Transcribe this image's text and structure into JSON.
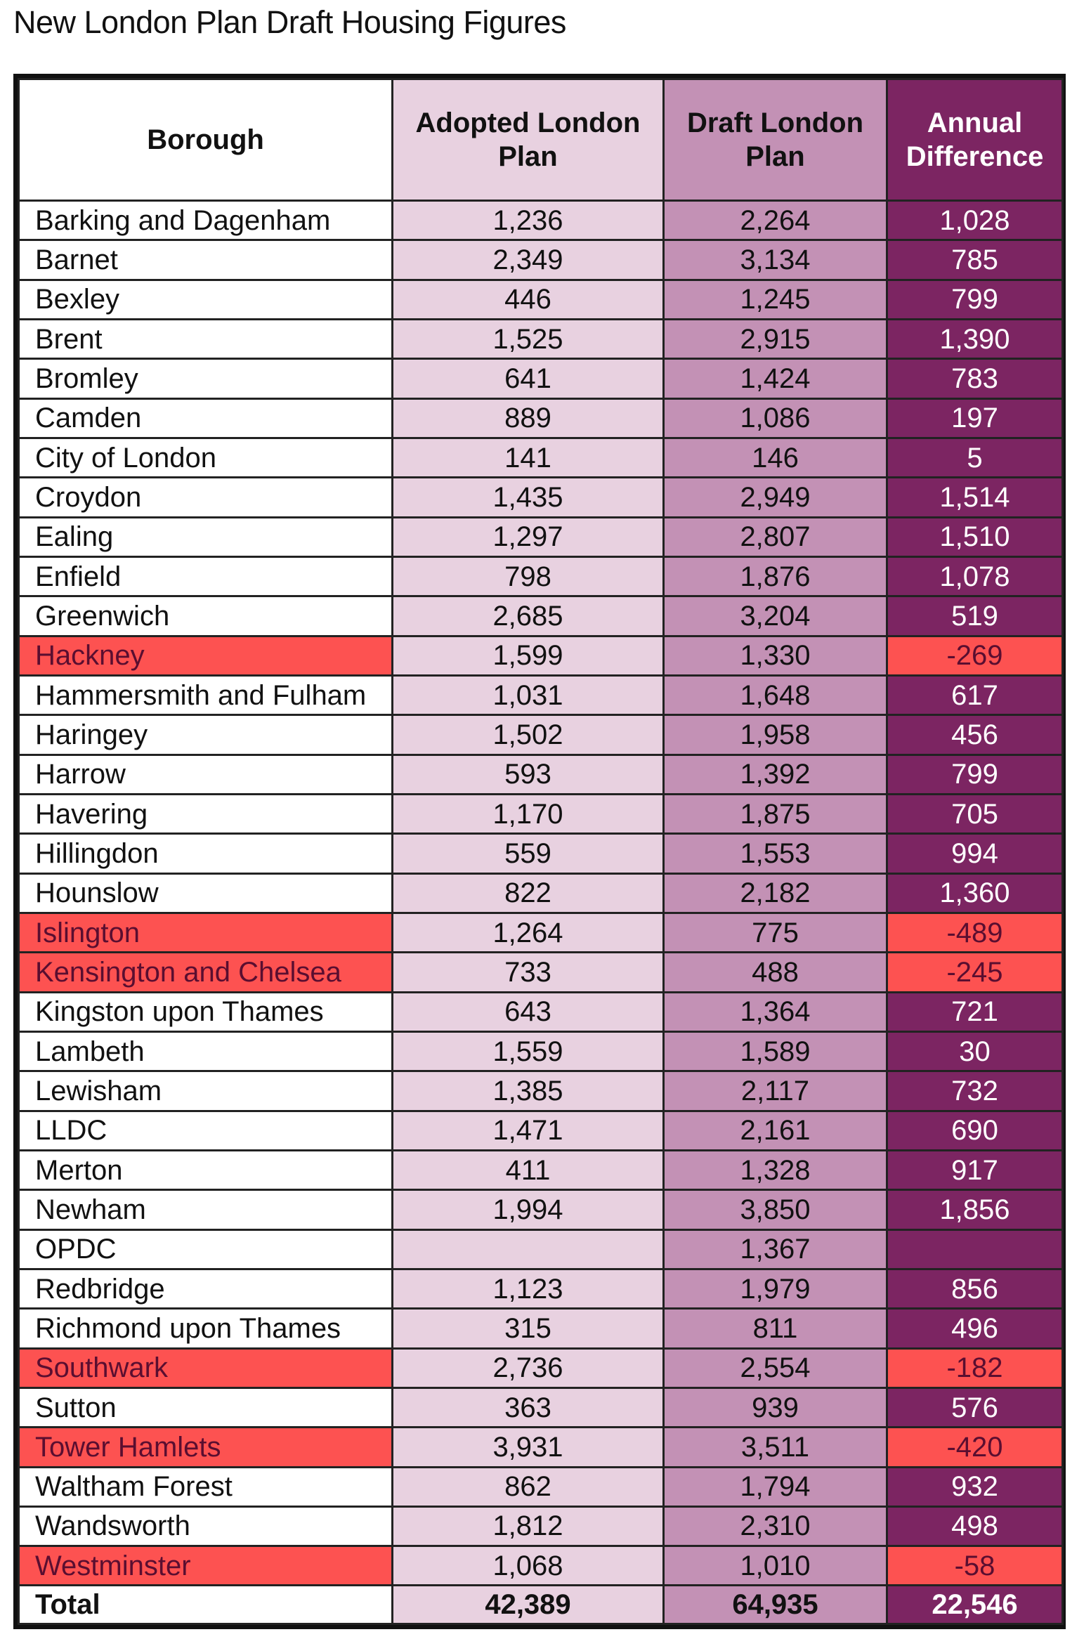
{
  "title": "New London Plan Draft Housing Figures",
  "colors": {
    "adopted_column": "#e8d1e0",
    "draft_column": "#c391b5",
    "difference_column": "#7c2562",
    "negative_highlight": "#fd5251"
  },
  "chart_data": {
    "type": "table",
    "title": "New London Plan Draft Housing Figures",
    "columns": [
      "Borough",
      "Adopted London Plan",
      "Draft London Plan",
      "Annual Difference"
    ],
    "rows": [
      {
        "borough": "Barking and Dagenham",
        "adopted": "1,236",
        "draft": "2,264",
        "difference": "1,028",
        "negative": false
      },
      {
        "borough": "Barnet",
        "adopted": "2,349",
        "draft": "3,134",
        "difference": "785",
        "negative": false
      },
      {
        "borough": "Bexley",
        "adopted": "446",
        "draft": "1,245",
        "difference": "799",
        "negative": false
      },
      {
        "borough": "Brent",
        "adopted": "1,525",
        "draft": "2,915",
        "difference": "1,390",
        "negative": false
      },
      {
        "borough": "Bromley",
        "adopted": "641",
        "draft": "1,424",
        "difference": "783",
        "negative": false
      },
      {
        "borough": "Camden",
        "adopted": "889",
        "draft": "1,086",
        "difference": "197",
        "negative": false
      },
      {
        "borough": "City of London",
        "adopted": "141",
        "draft": "146",
        "difference": "5",
        "negative": false
      },
      {
        "borough": "Croydon",
        "adopted": "1,435",
        "draft": "2,949",
        "difference": "1,514",
        "negative": false
      },
      {
        "borough": "Ealing",
        "adopted": "1,297",
        "draft": "2,807",
        "difference": "1,510",
        "negative": false
      },
      {
        "borough": "Enfield",
        "adopted": "798",
        "draft": "1,876",
        "difference": "1,078",
        "negative": false
      },
      {
        "borough": "Greenwich",
        "adopted": "2,685",
        "draft": "3,204",
        "difference": "519",
        "negative": false
      },
      {
        "borough": "Hackney",
        "adopted": "1,599",
        "draft": "1,330",
        "difference": "-269",
        "negative": true
      },
      {
        "borough": "Hammersmith and Fulham",
        "adopted": "1,031",
        "draft": "1,648",
        "difference": "617",
        "negative": false
      },
      {
        "borough": "Haringey",
        "adopted": "1,502",
        "draft": "1,958",
        "difference": "456",
        "negative": false
      },
      {
        "borough": "Harrow",
        "adopted": "593",
        "draft": "1,392",
        "difference": "799",
        "negative": false
      },
      {
        "borough": "Havering",
        "adopted": "1,170",
        "draft": "1,875",
        "difference": "705",
        "negative": false
      },
      {
        "borough": "Hillingdon",
        "adopted": "559",
        "draft": "1,553",
        "difference": "994",
        "negative": false
      },
      {
        "borough": "Hounslow",
        "adopted": "822",
        "draft": "2,182",
        "difference": "1,360",
        "negative": false
      },
      {
        "borough": "Islington",
        "adopted": "1,264",
        "draft": "775",
        "difference": "-489",
        "negative": true
      },
      {
        "borough": "Kensington and Chelsea",
        "adopted": "733",
        "draft": "488",
        "difference": "-245",
        "negative": true
      },
      {
        "borough": "Kingston upon Thames",
        "adopted": "643",
        "draft": "1,364",
        "difference": "721",
        "negative": false
      },
      {
        "borough": "Lambeth",
        "adopted": "1,559",
        "draft": "1,589",
        "difference": "30",
        "negative": false
      },
      {
        "borough": "Lewisham",
        "adopted": "1,385",
        "draft": "2,117",
        "difference": "732",
        "negative": false
      },
      {
        "borough": "LLDC",
        "adopted": "1,471",
        "draft": "2,161",
        "difference": "690",
        "negative": false
      },
      {
        "borough": "Merton",
        "adopted": "411",
        "draft": "1,328",
        "difference": "917",
        "negative": false
      },
      {
        "borough": "Newham",
        "adopted": "1,994",
        "draft": "3,850",
        "difference": "1,856",
        "negative": false
      },
      {
        "borough": "OPDC",
        "adopted": "",
        "draft": "1,367",
        "difference": "",
        "negative": false
      },
      {
        "borough": "Redbridge",
        "adopted": "1,123",
        "draft": "1,979",
        "difference": "856",
        "negative": false
      },
      {
        "borough": "Richmond upon Thames",
        "adopted": "315",
        "draft": "811",
        "difference": "496",
        "negative": false
      },
      {
        "borough": "Southwark",
        "adopted": "2,736",
        "draft": "2,554",
        "difference": "-182",
        "negative": true
      },
      {
        "borough": "Sutton",
        "adopted": "363",
        "draft": "939",
        "difference": "576",
        "negative": false
      },
      {
        "borough": "Tower Hamlets",
        "adopted": "3,931",
        "draft": "3,511",
        "difference": "-420",
        "negative": true
      },
      {
        "borough": "Waltham Forest",
        "adopted": "862",
        "draft": "1,794",
        "difference": "932",
        "negative": false
      },
      {
        "borough": "Wandsworth",
        "adopted": "1,812",
        "draft": "2,310",
        "difference": "498",
        "negative": false
      },
      {
        "borough": "Westminster",
        "adopted": "1,068",
        "draft": "1,010",
        "difference": "-58",
        "negative": true
      }
    ],
    "total": {
      "label": "Total",
      "adopted": "42,389",
      "draft": "64,935",
      "difference": "22,546"
    }
  }
}
